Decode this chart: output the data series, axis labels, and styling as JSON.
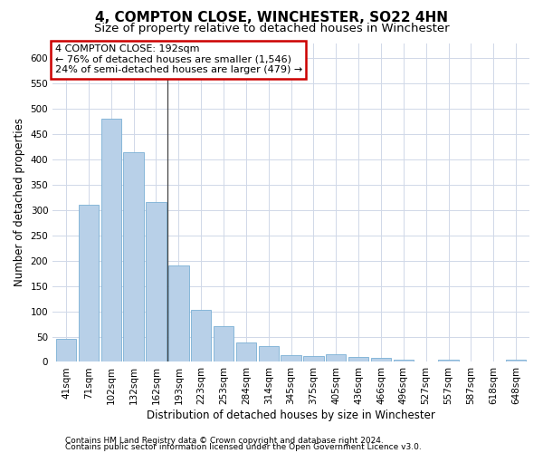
{
  "title": "4, COMPTON CLOSE, WINCHESTER, SO22 4HN",
  "subtitle": "Size of property relative to detached houses in Winchester",
  "xlabel": "Distribution of detached houses by size in Winchester",
  "ylabel": "Number of detached properties",
  "bar_color": "#b8d0e8",
  "bar_edge_color": "#7aafd4",
  "categories": [
    "41sqm",
    "71sqm",
    "102sqm",
    "132sqm",
    "162sqm",
    "193sqm",
    "223sqm",
    "253sqm",
    "284sqm",
    "314sqm",
    "345sqm",
    "375sqm",
    "405sqm",
    "436sqm",
    "466sqm",
    "496sqm",
    "527sqm",
    "557sqm",
    "587sqm",
    "618sqm",
    "648sqm"
  ],
  "values": [
    46,
    311,
    480,
    415,
    315,
    190,
    103,
    70,
    38,
    31,
    14,
    12,
    15,
    10,
    8,
    5,
    0,
    5,
    0,
    0,
    5
  ],
  "ylim": [
    0,
    630
  ],
  "yticks": [
    0,
    50,
    100,
    150,
    200,
    250,
    300,
    350,
    400,
    450,
    500,
    550,
    600
  ],
  "annotation_line1": "4 COMPTON CLOSE: 192sqm",
  "annotation_line2": "← 76% of detached houses are smaller (1,546)",
  "annotation_line3": "24% of semi-detached houses are larger (479) →",
  "annotation_box_color": "#ffffff",
  "annotation_box_edge_color": "#cc0000",
  "footer1": "Contains HM Land Registry data © Crown copyright and database right 2024.",
  "footer2": "Contains public sector information licensed under the Open Government Licence v3.0.",
  "background_color": "#ffffff",
  "grid_color": "#d0d8e8",
  "title_fontsize": 11,
  "subtitle_fontsize": 9.5,
  "axis_label_fontsize": 8.5,
  "tick_fontsize": 7.5,
  "footer_fontsize": 6.5,
  "annotation_fontsize": 8,
  "vertical_line_x": 4.5
}
